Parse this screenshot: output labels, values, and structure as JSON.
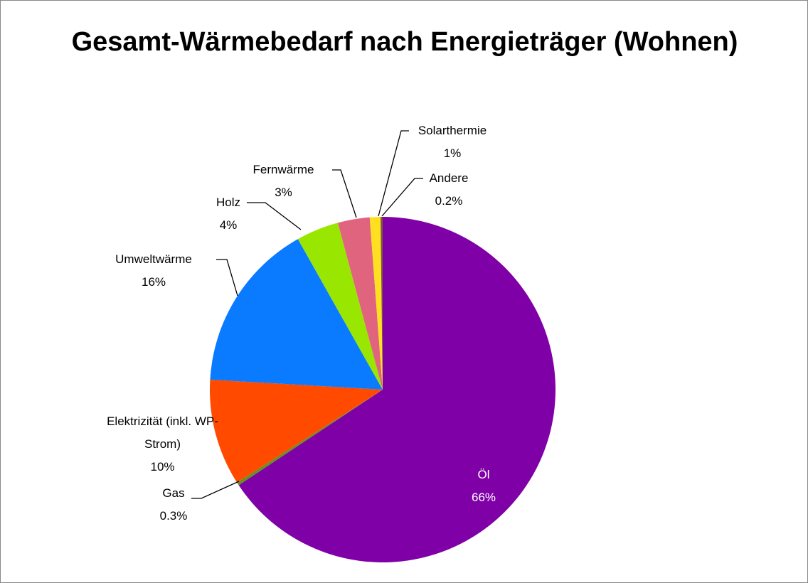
{
  "chart_data": {
    "type": "pie",
    "title": "Gesamt-Wärmebedarf nach Energieträger (Wohnen)",
    "categories": [
      "Öl",
      "Gas",
      "Elektrizität (inkl. WP-Strom)",
      "Umweltwärme",
      "Holz",
      "Fernwärme",
      "Solarthermie",
      "Andere"
    ],
    "values": [
      66,
      0.3,
      10,
      16,
      4,
      3,
      1,
      0.2
    ],
    "value_labels": [
      "66%",
      "0.3%",
      "10%",
      "16%",
      "4%",
      "3%",
      "1%",
      "0.2%"
    ],
    "colors": [
      "#8000a8",
      "#6b8e23",
      "#ff4a00",
      "#0a7aff",
      "#99e600",
      "#e0647e",
      "#ffe020",
      "#7a5a3a"
    ]
  }
}
